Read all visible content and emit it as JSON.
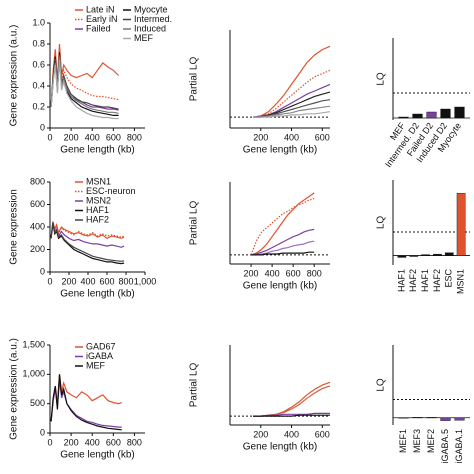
{
  "chart_data": [
    {
      "type": "line",
      "xlabel": "Gene length (kb)",
      "ylabel": "Gene expression (a.u.)",
      "xlim": [
        0,
        900
      ],
      "xticks": [
        0,
        200,
        400,
        600,
        800
      ],
      "ylim": [
        0,
        1
      ],
      "yticks": [
        0,
        0.2,
        0.4,
        0.6,
        0.8,
        {
          "value": 1,
          "label": "1.0"
        }
      ],
      "x": [
        10,
        30,
        50,
        70,
        90,
        110,
        130,
        160,
        200,
        250,
        300,
        350,
        400,
        450,
        500,
        550,
        600,
        650
      ],
      "series": [
        {
          "name": "Late iN",
          "color": "#e0522e",
          "style": "solid",
          "values": [
            0.2,
            0.55,
            0.75,
            0.45,
            0.8,
            0.5,
            0.6,
            0.55,
            0.5,
            0.48,
            0.5,
            0.52,
            0.48,
            0.55,
            0.62,
            0.58,
            0.55,
            0.5
          ]
        },
        {
          "name": "Early iN",
          "color": "#e0522e",
          "style": "dotted",
          "values": [
            0.2,
            0.5,
            0.7,
            0.4,
            0.75,
            0.45,
            0.55,
            0.48,
            0.42,
            0.38,
            0.36,
            0.33,
            0.31,
            0.3,
            0.3,
            0.29,
            0.28,
            0.27
          ]
        },
        {
          "name": "Failed",
          "color": "#7b3fa0",
          "style": "solid",
          "values": [
            0.2,
            0.45,
            0.65,
            0.35,
            0.7,
            0.38,
            0.5,
            0.38,
            0.3,
            0.27,
            0.25,
            0.22,
            0.2,
            0.2,
            0.19,
            0.18,
            0.18,
            0.17
          ]
        },
        {
          "name": "Myocyte",
          "color": "#111111",
          "style": "solid",
          "values": [
            0.2,
            0.5,
            0.68,
            0.35,
            0.72,
            0.4,
            0.48,
            0.35,
            0.28,
            0.24,
            0.2,
            0.18,
            0.16,
            0.15,
            0.14,
            0.13,
            0.12,
            0.12
          ]
        },
        {
          "name": "Intermed.",
          "color": "#444444",
          "style": "solid",
          "values": [
            0.2,
            0.48,
            0.66,
            0.38,
            0.7,
            0.42,
            0.5,
            0.4,
            0.32,
            0.28,
            0.25,
            0.24,
            0.22,
            0.21,
            0.2,
            0.2,
            0.19,
            0.18
          ]
        },
        {
          "name": "Induced",
          "color": "#777777",
          "style": "solid",
          "values": [
            0.2,
            0.46,
            0.62,
            0.36,
            0.68,
            0.4,
            0.47,
            0.37,
            0.3,
            0.26,
            0.23,
            0.2,
            0.18,
            0.17,
            0.16,
            0.15,
            0.15,
            0.14
          ]
        },
        {
          "name": "MEF",
          "color": "#aaaaaa",
          "style": "solid",
          "values": [
            0.2,
            0.44,
            0.6,
            0.33,
            0.65,
            0.36,
            0.44,
            0.33,
            0.26,
            0.2,
            0.17,
            0.14,
            0.12,
            0.11,
            0.1,
            0.1,
            0.09,
            0.09
          ]
        }
      ]
    },
    {
      "type": "line",
      "xlabel": "Gene length (kb)",
      "ylabel": "Partial LQ",
      "xlim": [
        0,
        650
      ],
      "xticks": [
        200,
        400,
        600
      ],
      "ylim": [
        -0.1,
        0.8
      ],
      "hline": 0,
      "x": [
        150,
        200,
        250,
        300,
        350,
        400,
        450,
        500,
        550,
        600,
        650
      ],
      "series": [
        {
          "color": "#e0522e",
          "style": "solid",
          "values": [
            0,
            0.01,
            0.05,
            0.12,
            0.2,
            0.3,
            0.4,
            0.5,
            0.57,
            0.62,
            0.65
          ]
        },
        {
          "color": "#e0522e",
          "style": "dotted",
          "values": [
            0,
            0.01,
            0.03,
            0.08,
            0.14,
            0.2,
            0.26,
            0.32,
            0.37,
            0.4,
            0.43
          ]
        },
        {
          "color": "#7b3fa0",
          "style": "solid",
          "values": [
            0,
            0.01,
            0.02,
            0.05,
            0.09,
            0.13,
            0.17,
            0.21,
            0.24,
            0.27,
            0.3
          ]
        },
        {
          "color": "#222222",
          "style": "solid",
          "values": [
            0,
            0,
            0.02,
            0.04,
            0.07,
            0.1,
            0.13,
            0.16,
            0.19,
            0.21,
            0.23
          ]
        },
        {
          "color": "#555555",
          "style": "solid",
          "values": [
            0,
            0,
            0.01,
            0.03,
            0.05,
            0.07,
            0.09,
            0.11,
            0.13,
            0.15,
            0.16
          ]
        },
        {
          "color": "#888888",
          "style": "solid",
          "values": [
            0,
            0,
            0.01,
            0.02,
            0.03,
            0.04,
            0.06,
            0.07,
            0.08,
            0.09,
            0.1
          ]
        },
        {
          "color": "#aaaaaa",
          "style": "solid",
          "values": [
            0,
            0,
            0,
            0.01,
            0.01,
            0.02,
            0.02,
            0.03,
            0.03,
            0.04,
            0.05
          ]
        }
      ]
    },
    {
      "type": "bar",
      "ylabel": "LQ",
      "ylim": [
        -0.02,
        0.8
      ],
      "hline": 0.25,
      "categories": [
        "MEF",
        "Intermed. D2",
        "Failed D2",
        "Induced D2",
        "Myocyte"
      ],
      "values": [
        0.01,
        0.04,
        0.06,
        0.09,
        0.11
      ],
      "colors": [
        "#111111",
        "#111111",
        "#7b3fa0",
        "#111111",
        "#111111"
      ]
    },
    {
      "type": "line",
      "xlabel": "Gene length (kb)",
      "ylabel": "Gene expression",
      "xlim": [
        0,
        1000
      ],
      "xticks": [
        0,
        200,
        400,
        600,
        800,
        {
          "value": 1000,
          "label": "1,000"
        }
      ],
      "ylim": [
        0,
        800
      ],
      "yticks": [
        0,
        200,
        400,
        600,
        800
      ],
      "x": [
        10,
        30,
        50,
        70,
        90,
        120,
        150,
        200,
        250,
        300,
        350,
        400,
        450,
        500,
        550,
        600,
        650,
        700,
        750,
        780
      ],
      "series": [
        {
          "name": "MSN1",
          "color": "#e0522e",
          "style": "solid",
          "values": [
            300,
            450,
            380,
            420,
            350,
            400,
            380,
            360,
            340,
            350,
            330,
            320,
            340,
            310,
            330,
            300,
            320,
            310,
            300,
            310
          ]
        },
        {
          "name": "ESC-neuron",
          "color": "#e0522e",
          "style": "dotted",
          "values": [
            300,
            440,
            370,
            410,
            340,
            390,
            370,
            350,
            330,
            360,
            340,
            330,
            350,
            320,
            340,
            320,
            330,
            320,
            310,
            320
          ]
        },
        {
          "name": "MSN2",
          "color": "#7b3fa0",
          "style": "solid",
          "values": [
            300,
            420,
            350,
            380,
            320,
            360,
            330,
            300,
            280,
            290,
            270,
            260,
            250,
            250,
            240,
            230,
            240,
            230,
            220,
            230
          ]
        },
        {
          "name": "HAF1",
          "color": "#111111",
          "style": "solid",
          "values": [
            300,
            430,
            340,
            360,
            300,
            320,
            280,
            240,
            200,
            180,
            160,
            140,
            120,
            110,
            100,
            90,
            90,
            80,
            75,
            80
          ]
        },
        {
          "name": "HAF2",
          "color": "#444444",
          "style": "solid",
          "values": [
            300,
            440,
            350,
            370,
            310,
            330,
            290,
            250,
            220,
            200,
            180,
            160,
            140,
            130,
            120,
            110,
            105,
            100,
            95,
            100
          ]
        }
      ]
    },
    {
      "type": "line",
      "xlabel": "Gene length (kb)",
      "ylabel": "Partial LQ",
      "xlim": [
        0,
        950
      ],
      "xticks": [
        200,
        400,
        600,
        800
      ],
      "ylim": [
        -0.1,
        0.8
      ],
      "hline": 0,
      "x": [
        200,
        250,
        300,
        350,
        400,
        450,
        500,
        550,
        600,
        650,
        700,
        750,
        800
      ],
      "series": [
        {
          "color": "#e0522e",
          "style": "solid",
          "values": [
            0,
            0.02,
            0.06,
            0.12,
            0.2,
            0.28,
            0.36,
            0.44,
            0.5,
            0.56,
            0.6,
            0.64,
            0.68
          ]
        },
        {
          "color": "#e0522e",
          "style": "dotted",
          "values": [
            0,
            0.15,
            0.25,
            0.3,
            0.35,
            0.4,
            0.45,
            0.48,
            0.52,
            0.55,
            0.57,
            0.6,
            0.62
          ]
        },
        {
          "color": "#7b3fa0",
          "style": "solid",
          "values": [
            0,
            0.01,
            0.03,
            0.05,
            0.08,
            0.11,
            0.14,
            0.17,
            0.2,
            0.22,
            0.25,
            0.27,
            0.28
          ]
        },
        {
          "color": "#9b6fc0",
          "style": "solid",
          "values": [
            0,
            0,
            0.01,
            0.02,
            0.04,
            0.05,
            0.07,
            0.08,
            0.1,
            0.11,
            0.12,
            0.14,
            0.15
          ]
        },
        {
          "color": "#111111",
          "style": "solid",
          "values": [
            0,
            0,
            0,
            0.01,
            0.01,
            0.01,
            0.02,
            0.02,
            0.02,
            0.02,
            0.02,
            0.03,
            0.03
          ]
        }
      ]
    },
    {
      "type": "bar",
      "ylabel": "LQ",
      "ylim": [
        -0.1,
        0.8
      ],
      "hline": 0.25,
      "categories": [
        "HAF1",
        "HAF2",
        "HAF1",
        "HAF2",
        "ESC",
        "MSN1"
      ],
      "values": [
        -0.02,
        -0.01,
        0.01,
        0.015,
        0.03,
        0.66
      ],
      "colors": [
        "#111111",
        "#111111",
        "#111111",
        "#111111",
        "#111111",
        "#e0522e"
      ]
    },
    {
      "type": "line",
      "xlabel": "Gene length (kb)",
      "ylabel": "Gene expression (a.u.)",
      "xlim": [
        0,
        900
      ],
      "xticks": [
        0,
        200,
        400,
        600,
        800
      ],
      "ylim": [
        0,
        1500
      ],
      "yticks": [
        0,
        500,
        {
          "value": 1000,
          "label": "1,000"
        },
        {
          "value": 1500,
          "label": "1,500"
        }
      ],
      "x": [
        10,
        30,
        50,
        70,
        90,
        110,
        130,
        160,
        200,
        250,
        300,
        350,
        400,
        450,
        500,
        550,
        600,
        650,
        680
      ],
      "series": [
        {
          "name": "GAD67",
          "color": "#e0522e",
          "style": "solid",
          "values": [
            200,
            600,
            800,
            500,
            1000,
            700,
            850,
            700,
            650,
            600,
            700,
            650,
            550,
            600,
            650,
            550,
            520,
            500,
            520
          ]
        },
        {
          "name": "iGABA",
          "color": "#7b3fa0",
          "style": "solid",
          "values": [
            200,
            550,
            750,
            450,
            900,
            600,
            700,
            500,
            400,
            300,
            250,
            200,
            180,
            150,
            130,
            120,
            110,
            100,
            100
          ]
        },
        {
          "name": "MEF",
          "color": "#111111",
          "style": "solid",
          "values": [
            200,
            600,
            800,
            400,
            1000,
            650,
            750,
            500,
            380,
            280,
            220,
            180,
            150,
            120,
            100,
            80,
            70,
            60,
            55
          ]
        }
      ]
    },
    {
      "type": "line",
      "xlabel": "Gene length (kb)",
      "ylabel": "Partial LQ",
      "xlim": [
        0,
        650
      ],
      "xticks": [
        200,
        400,
        600
      ],
      "ylim": [
        -0.1,
        0.8
      ],
      "hline": 0,
      "x": [
        150,
        200,
        250,
        300,
        350,
        400,
        450,
        500,
        550,
        600,
        650
      ],
      "series": [
        {
          "color": "#e0522e",
          "style": "solid",
          "values": [
            0,
            0,
            0.01,
            0.02,
            0.05,
            0.1,
            0.16,
            0.24,
            0.3,
            0.35,
            0.38
          ]
        },
        {
          "color": "#d06040",
          "style": "solid",
          "values": [
            0,
            0,
            0.01,
            0.02,
            0.04,
            0.08,
            0.13,
            0.2,
            0.26,
            0.31,
            0.34
          ]
        },
        {
          "color": "#7b3fa0",
          "style": "solid",
          "values": [
            0,
            0,
            0.01,
            0.01,
            0.02,
            0.02,
            0.02,
            0.02,
            0.03,
            0.03,
            0.03
          ]
        },
        {
          "color": "#111111",
          "style": "solid",
          "values": [
            0,
            0,
            0,
            0,
            0,
            0,
            0.01,
            0.01,
            0.01,
            0.01,
            0.01
          ]
        }
      ]
    },
    {
      "type": "bar",
      "ylabel": "LQ",
      "ylim": [
        -0.1,
        1
      ],
      "hline": 0.25,
      "categories": [
        "MEF1",
        "MEF3",
        "MEF2",
        "iGABA.5",
        "iGABA.1"
      ],
      "values": [
        0,
        0.005,
        0.005,
        -0.04,
        -0.035
      ],
      "colors": [
        "#111111",
        "#111111",
        "#111111",
        "#7b3fa0",
        "#7b3fa0"
      ]
    }
  ]
}
